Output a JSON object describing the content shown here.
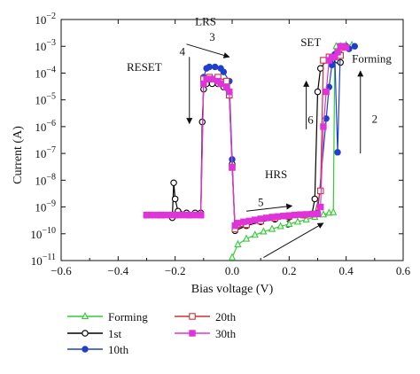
{
  "chart_data": {
    "type": "scatter",
    "xlabel": "Bias voltage (V)",
    "ylabel": "Current (A)",
    "xlim": [
      -0.6,
      0.6
    ],
    "ylim_log10": [
      -11,
      -2
    ],
    "y_scale": "log",
    "grid": false,
    "legend_position": "bottom",
    "x_ticks": [
      {
        "v": -0.6,
        "label": "−0.6"
      },
      {
        "v": -0.4,
        "label": "−0.4"
      },
      {
        "v": -0.2,
        "label": "−0.2"
      },
      {
        "v": 0.0,
        "label": "0.0"
      },
      {
        "v": 0.2,
        "label": "0.2"
      },
      {
        "v": 0.4,
        "label": "0.4"
      },
      {
        "v": 0.6,
        "label": "0.6"
      }
    ],
    "y_ticks": [
      {
        "exp": -2,
        "base": "10",
        "sup": "−2"
      },
      {
        "exp": -3,
        "base": "10",
        "sup": "−3"
      },
      {
        "exp": -4,
        "base": "10",
        "sup": "−4"
      },
      {
        "exp": -5,
        "base": "10",
        "sup": "−5"
      },
      {
        "exp": -6,
        "base": "10",
        "sup": "−6"
      },
      {
        "exp": -7,
        "base": "10",
        "sup": "−7"
      },
      {
        "exp": -8,
        "base": "10",
        "sup": "−8"
      },
      {
        "exp": -9,
        "base": "10",
        "sup": "−9"
      },
      {
        "exp": -10,
        "base": "10",
        "sup": "−10"
      },
      {
        "exp": -11,
        "base": "10",
        "sup": "−11"
      }
    ],
    "series": [
      {
        "name": "Forming",
        "color": "#33cc33",
        "marker": "triangle",
        "points": [
          [
            0.0,
            1.3e-11
          ],
          [
            0.02,
            4e-11
          ],
          [
            0.05,
            6.5e-11
          ],
          [
            0.08,
            9e-11
          ],
          [
            0.11,
            1.2e-10
          ],
          [
            0.14,
            1.5e-10
          ],
          [
            0.17,
            1.9e-10
          ],
          [
            0.2,
            2.3e-10
          ],
          [
            0.23,
            2.8e-10
          ],
          [
            0.26,
            3.4e-10
          ],
          [
            0.29,
            4.2e-10
          ],
          [
            0.32,
            5.2e-10
          ],
          [
            0.34,
            6e-10
          ],
          [
            0.355,
            6.3e-10
          ],
          [
            0.36,
            0.0004
          ],
          [
            0.365,
            0.001
          ],
          [
            0.38,
            0.001
          ],
          [
            0.4,
            0.0011
          ],
          [
            0.42,
            0.0011
          ]
        ]
      },
      {
        "name": "1st",
        "color": "#000000",
        "marker": "circle-open",
        "points": [
          [
            -0.3,
            5e-10
          ],
          [
            -0.28,
            5e-10
          ],
          [
            -0.26,
            5e-10
          ],
          [
            -0.24,
            5e-10
          ],
          [
            -0.22,
            5e-10
          ],
          [
            -0.21,
            4e-10
          ],
          [
            -0.205,
            8e-09
          ],
          [
            -0.2,
            2e-09
          ],
          [
            -0.19,
            7e-10
          ],
          [
            -0.16,
            6e-10
          ],
          [
            -0.13,
            6e-10
          ],
          [
            -0.11,
            6e-10
          ],
          [
            -0.105,
            1.5e-06
          ],
          [
            -0.1,
            2.5e-05
          ],
          [
            -0.09,
            4e-05
          ],
          [
            -0.07,
            4e-05
          ],
          [
            -0.05,
            4e-05
          ],
          [
            -0.03,
            3e-05
          ],
          [
            -0.01,
            1.5e-05
          ],
          [
            0.0,
            4e-08
          ],
          [
            0.01,
            1.3e-10
          ],
          [
            0.05,
            2e-10
          ],
          [
            0.1,
            2.8e-10
          ],
          [
            0.15,
            3.5e-10
          ],
          [
            0.2,
            4.2e-10
          ],
          [
            0.25,
            5e-10
          ],
          [
            0.28,
            5.5e-10
          ],
          [
            0.29,
            2e-09
          ],
          [
            0.3,
            2e-05
          ],
          [
            0.31,
            0.00015
          ],
          [
            0.33,
            0.0003
          ],
          [
            0.35,
            0.0003
          ],
          [
            0.37,
            0.0003
          ],
          [
            0.38,
            0.00025
          ]
        ]
      },
      {
        "name": "10th",
        "color": "#1f3fcc",
        "marker": "circle-filled",
        "points": [
          [
            -0.3,
            5e-10
          ],
          [
            -0.26,
            5e-10
          ],
          [
            -0.22,
            5e-10
          ],
          [
            -0.18,
            5e-10
          ],
          [
            -0.14,
            5e-10
          ],
          [
            -0.11,
            5e-10
          ],
          [
            -0.1,
            7e-05
          ],
          [
            -0.09,
            0.00015
          ],
          [
            -0.08,
            0.00017
          ],
          [
            -0.06,
            0.00017
          ],
          [
            -0.04,
            0.00015
          ],
          [
            -0.03,
            0.00011
          ],
          [
            -0.01,
            5e-05
          ],
          [
            0.0,
            6e-08
          ],
          [
            0.01,
            1.5e-10
          ],
          [
            0.05,
            2.2e-10
          ],
          [
            0.1,
            3e-10
          ],
          [
            0.15,
            3.8e-10
          ],
          [
            0.2,
            4.5e-10
          ],
          [
            0.25,
            5.2e-10
          ],
          [
            0.3,
            6e-10
          ],
          [
            0.33,
            2e-06
          ],
          [
            0.34,
            3e-05
          ],
          [
            0.35,
            0.0002
          ],
          [
            0.36,
            0.0005
          ],
          [
            0.37,
            1.1e-07
          ],
          [
            0.38,
            0.001
          ],
          [
            0.4,
            0.001
          ],
          [
            0.41,
            0.0008
          ],
          [
            0.43,
            0.001
          ]
        ]
      },
      {
        "name": "20th",
        "color": "#cc3333",
        "marker": "square-open",
        "points": [
          [
            -0.3,
            5e-10
          ],
          [
            -0.25,
            5e-10
          ],
          [
            -0.2,
            5e-10
          ],
          [
            -0.15,
            5e-10
          ],
          [
            -0.11,
            5e-10
          ],
          [
            -0.1,
            6e-05
          ],
          [
            -0.08,
            7e-05
          ],
          [
            -0.05,
            7e-05
          ],
          [
            -0.02,
            5e-05
          ],
          [
            -0.01,
            1.5e-05
          ],
          [
            0.0,
            3e-08
          ],
          [
            0.01,
            1.5e-10
          ],
          [
            0.05,
            2.2e-10
          ],
          [
            0.1,
            3e-10
          ],
          [
            0.15,
            3.8e-10
          ],
          [
            0.2,
            4.5e-10
          ],
          [
            0.25,
            5e-10
          ],
          [
            0.29,
            5.5e-10
          ],
          [
            0.31,
            4e-09
          ],
          [
            0.32,
            0.0003
          ],
          [
            0.34,
            0.0004
          ],
          [
            0.36,
            0.0004
          ],
          [
            0.38,
            0.00045
          ],
          [
            0.39,
            0.001
          ]
        ]
      },
      {
        "name": "30th",
        "color": "#e033d9",
        "marker": "square-filled",
        "points": [
          [
            -0.3,
            5e-10
          ],
          [
            -0.28,
            5e-10
          ],
          [
            -0.26,
            5e-10
          ],
          [
            -0.24,
            5e-10
          ],
          [
            -0.22,
            5e-10
          ],
          [
            -0.2,
            5e-10
          ],
          [
            -0.18,
            5e-10
          ],
          [
            -0.16,
            5e-10
          ],
          [
            -0.14,
            5e-10
          ],
          [
            -0.12,
            5e-10
          ],
          [
            -0.11,
            5e-10
          ],
          [
            -0.1,
            4e-05
          ],
          [
            -0.09,
            6e-05
          ],
          [
            -0.08,
            6e-05
          ],
          [
            -0.07,
            6e-05
          ],
          [
            -0.05,
            5e-05
          ],
          [
            -0.04,
            4e-05
          ],
          [
            -0.02,
            3e-05
          ],
          [
            -0.01,
            2e-05
          ],
          [
            0.0,
            3e-08
          ],
          [
            0.01,
            2e-10
          ],
          [
            0.02,
            2.5e-10
          ],
          [
            0.04,
            2.8e-10
          ],
          [
            0.06,
            3e-10
          ],
          [
            0.08,
            3.3e-10
          ],
          [
            0.1,
            3.6e-10
          ],
          [
            0.12,
            3.9e-10
          ],
          [
            0.14,
            4.2e-10
          ],
          [
            0.16,
            4.4e-10
          ],
          [
            0.18,
            4.6e-10
          ],
          [
            0.2,
            4.8e-10
          ],
          [
            0.22,
            5e-10
          ],
          [
            0.24,
            5.2e-10
          ],
          [
            0.26,
            5.3e-10
          ],
          [
            0.28,
            5.4e-10
          ],
          [
            0.3,
            5.5e-10
          ],
          [
            0.31,
            1e-09
          ],
          [
            0.32,
            1e-06
          ],
          [
            0.33,
            2e-05
          ],
          [
            0.34,
            0.0003
          ],
          [
            0.35,
            0.0004
          ],
          [
            0.36,
            0.0004
          ],
          [
            0.37,
            0.0006
          ],
          [
            0.38,
            0.001
          ],
          [
            0.39,
            0.001
          ],
          [
            0.4,
            0.0009
          ]
        ]
      }
    ],
    "annotations": [
      {
        "text": "LRS",
        "x": -0.13,
        "y": 0.006
      },
      {
        "text": "3",
        "x": -0.08,
        "y": 0.0016
      },
      {
        "text": "4",
        "x": -0.185,
        "y": 0.00045
      },
      {
        "text": "RESET",
        "x": -0.37,
        "y": 0.00012
      },
      {
        "text": "SET",
        "x": 0.24,
        "y": 0.001
      },
      {
        "text": "Forming",
        "x": 0.42,
        "y": 0.00025
      },
      {
        "text": "2",
        "x": 0.49,
        "y": 1.4e-06
      },
      {
        "text": "6",
        "x": 0.265,
        "y": 1.3e-06
      },
      {
        "text": "HRS",
        "x": 0.115,
        "y": 1.2e-08
      },
      {
        "text": "5",
        "x": 0.09,
        "y": 1.1e-09
      },
      {
        "text": "1",
        "x": 0.185,
        "y": 1.7e-10
      }
    ],
    "arrows": [
      {
        "from": [
          -0.16,
          0.0012
        ],
        "to": [
          -0.01,
          0.0004
        ]
      },
      {
        "from": [
          -0.15,
          0.0004
        ],
        "to": [
          -0.15,
          1.3e-06
        ]
      },
      {
        "from": [
          0.26,
          8e-07
        ],
        "to": [
          0.26,
          5e-05
        ]
      },
      {
        "from": [
          0.45,
          1e-07
        ],
        "to": [
          0.45,
          0.00012
        ]
      },
      {
        "from": [
          0.05,
          7e-10
        ],
        "to": [
          0.21,
          1.1e-09
        ]
      },
      {
        "from": [
          0.11,
          1.3e-11
        ],
        "to": [
          0.32,
          2.5e-10
        ]
      }
    ],
    "legend": [
      {
        "label": "Forming",
        "series": "Forming"
      },
      {
        "label": "1st",
        "series": "1st"
      },
      {
        "label": "10th",
        "series": "10th"
      },
      {
        "label": "20th",
        "series": "20th"
      },
      {
        "label": "30th",
        "series": "30th"
      }
    ]
  }
}
